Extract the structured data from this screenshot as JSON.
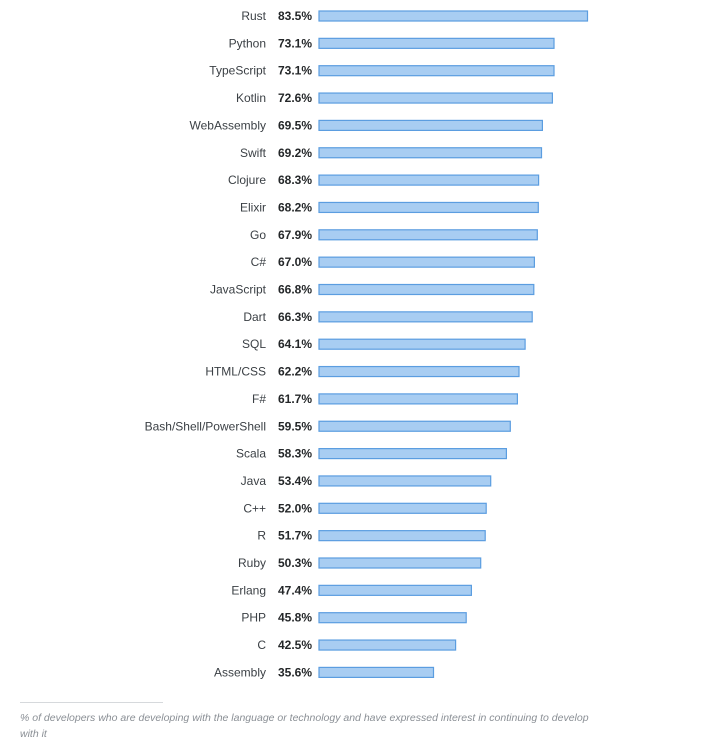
{
  "chart_data": {
    "type": "bar",
    "orientation": "horizontal",
    "categories": [
      "Rust",
      "Python",
      "TypeScript",
      "Kotlin",
      "WebAssembly",
      "Swift",
      "Clojure",
      "Elixir",
      "Go",
      "C#",
      "JavaScript",
      "Dart",
      "SQL",
      "HTML/CSS",
      "F#",
      "Bash/Shell/PowerShell",
      "Scala",
      "Java",
      "C++",
      "R",
      "Ruby",
      "Erlang",
      "PHP",
      "C",
      "Assembly"
    ],
    "values": [
      83.5,
      73.1,
      73.1,
      72.6,
      69.5,
      69.2,
      68.3,
      68.2,
      67.9,
      67.0,
      66.8,
      66.3,
      64.1,
      62.2,
      61.7,
      59.5,
      58.3,
      53.4,
      52.0,
      51.7,
      50.3,
      47.4,
      45.8,
      42.5,
      35.6
    ],
    "value_labels": [
      "83.5%",
      "73.1%",
      "73.1%",
      "72.6%",
      "69.5%",
      "69.2%",
      "68.3%",
      "68.2%",
      "67.9%",
      "67.0%",
      "66.8%",
      "66.3%",
      "64.1%",
      "62.2%",
      "61.7%",
      "59.5%",
      "58.3%",
      "53.4%",
      "52.0%",
      "51.7%",
      "50.3%",
      "47.4%",
      "45.8%",
      "42.5%",
      "35.6%"
    ],
    "unit": "%",
    "xlim": [
      0,
      100
    ],
    "grid": false,
    "colors": {
      "bar_fill": "#a8cdf2",
      "bar_stroke": "#5b9de0"
    }
  },
  "footnote": "% of developers who are developing with the language or technology and have expressed interest in continuing to develop with it"
}
